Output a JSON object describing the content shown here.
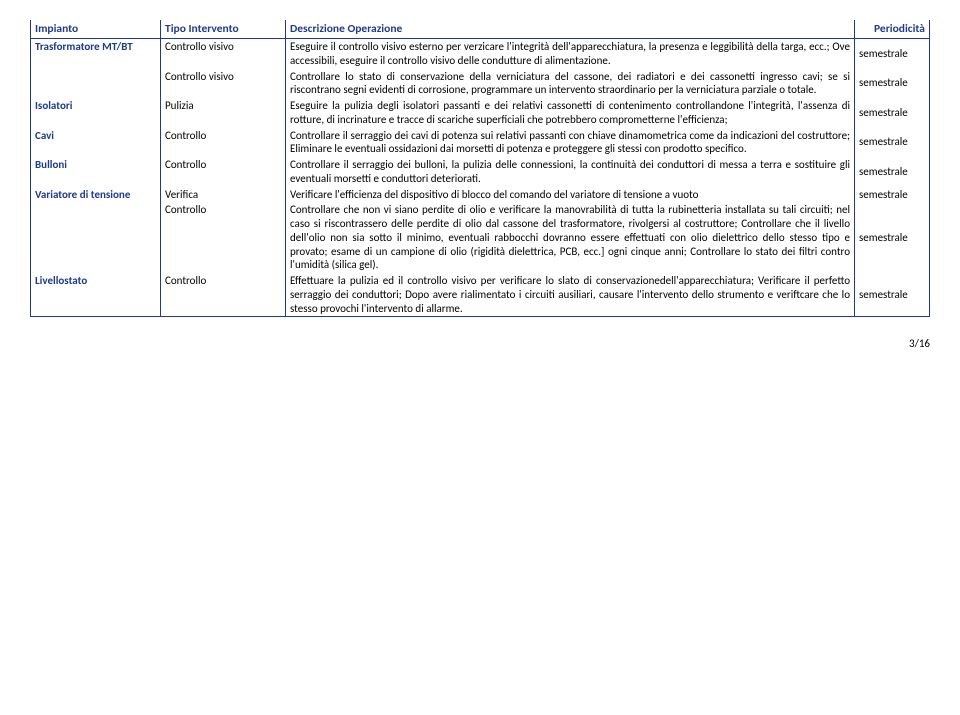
{
  "headers": {
    "impianto": "Impianto",
    "tipo": "Tipo Intervento",
    "desc": "Descrizione Operazione",
    "periodo": "Periodicità"
  },
  "rows": [
    {
      "impianto": "Trasformatore MT/BT",
      "tipo": "Controllo visivo",
      "desc": "Eseguire il controllo visivo esterno per verzicare l'integrità dell'apparecchiatura, la presenza e leggibilità della targa, ecc.; Ove accessibili, eseguire il controllo visivo delle condutture di alimentazione.",
      "periodo": "semestrale"
    },
    {
      "impianto": "",
      "tipo": "Controllo visivo",
      "desc": "Controllare lo stato di conservazione della verniciatura del cassone, dei radiatori e dei cassonetti ingresso cavi; se si riscontrano segni evidenti di corrosione, programmare un intervento straordinario per la verniciatura parziale o totale.",
      "periodo": "semestrale"
    },
    {
      "impianto": "Isolatori",
      "tipo": "Pulizia",
      "desc": "Eseguire la pulizia degli isolatori passanti e dei relativi cassonetti di contenimento controllandone l'integrità, l'assenza di rotture, di incrinature e tracce di scariche superficiali che potrebbero comprometterne l'efficienza;",
      "periodo": "semestrale"
    },
    {
      "impianto": "Cavi",
      "tipo": "Controllo",
      "desc": "Controllare il serraggio dei cavi di potenza sui relativi passanti con chiave dinamometrica come da indicazioni del costruttore; Eliminare le eventuali ossidazioni dai morsetti di potenza e proteggere gli stessi con prodotto specifico.",
      "periodo": "semestrale"
    },
    {
      "impianto": "Bulloni",
      "tipo": "Controllo",
      "desc": "Controllare il serraggio dei bulloni, la pulizia delle connessioni, la continuità dei conduttori di messa a terra e sostituire gli eventuali morsetti e conduttori deteriorati.",
      "periodo": "semestrale"
    },
    {
      "impianto": "Variatore di tensione",
      "tipo": "Verifica",
      "desc": "Verificare l'efficienza del dispositivo di blocco del comando del variatore di tensione a vuoto",
      "periodo": "semestrale"
    },
    {
      "impianto": "",
      "tipo": "Controllo",
      "desc": "Controllare che non vi siano perdite di olio e verificare la manovrabilità di tutta la rubinetteria installata su tali circuiti; nel caso si riscontrassero delle perdite di olio dal cassone del trasformatore, rivolgersi al costruttore; Controllare che il livello dell'olio non sia sotto il minimo, eventuali rabbocchi dovranno essere effettuati con olio dielettrico dello stesso tipo e provato; esame di un campione di olio (rigidità dielettrica, PCB, ecc.] ogni cinque anni; Controllare lo stato dei filtri contro l'umidità (silica gel).",
      "periodo": "semestrale"
    },
    {
      "impianto": "Livellostato",
      "tipo": "Controllo",
      "desc": "Effettuare la pulizia ed il controllo visivo per verificare lo slato di conservazionedell'apparecchiatura; Verificare il perfetto serraggio dei conduttori; Dopo avere rialimentato i circuiti ausiliari, causare l'intervento dello strumento e veriftcare che lo stesso provochi l'intervento di allarme.",
      "periodo": "semestrale"
    }
  ],
  "pagenum": "3/16"
}
